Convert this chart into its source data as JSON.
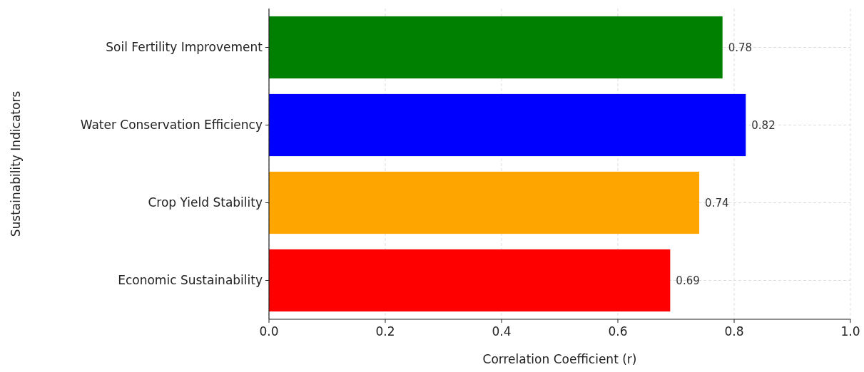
{
  "chart_data": {
    "type": "bar",
    "orientation": "horizontal",
    "xlabel": "Correlation Coefficient (r)",
    "ylabel": "Sustainability Indicators",
    "categories": [
      "Soil Fertility Improvement",
      "Water Conservation Efficiency",
      "Crop Yield Stability",
      "Economic Sustainability"
    ],
    "values": [
      0.78,
      0.82,
      0.74,
      0.69
    ],
    "colors": [
      "#008000",
      "#0000ff",
      "#ffa500",
      "#ff0000"
    ],
    "xlim": [
      0,
      1
    ],
    "xticks": [
      {
        "value": 0,
        "label": "0.0"
      },
      {
        "value": 0.2,
        "label": "0.2"
      },
      {
        "value": 0.4,
        "label": "0.4"
      },
      {
        "value": 0.6,
        "label": "0.6"
      },
      {
        "value": 0.8,
        "label": "0.8"
      },
      {
        "value": 1,
        "label": "1.0"
      }
    ],
    "grid": true,
    "data_labels": true
  }
}
